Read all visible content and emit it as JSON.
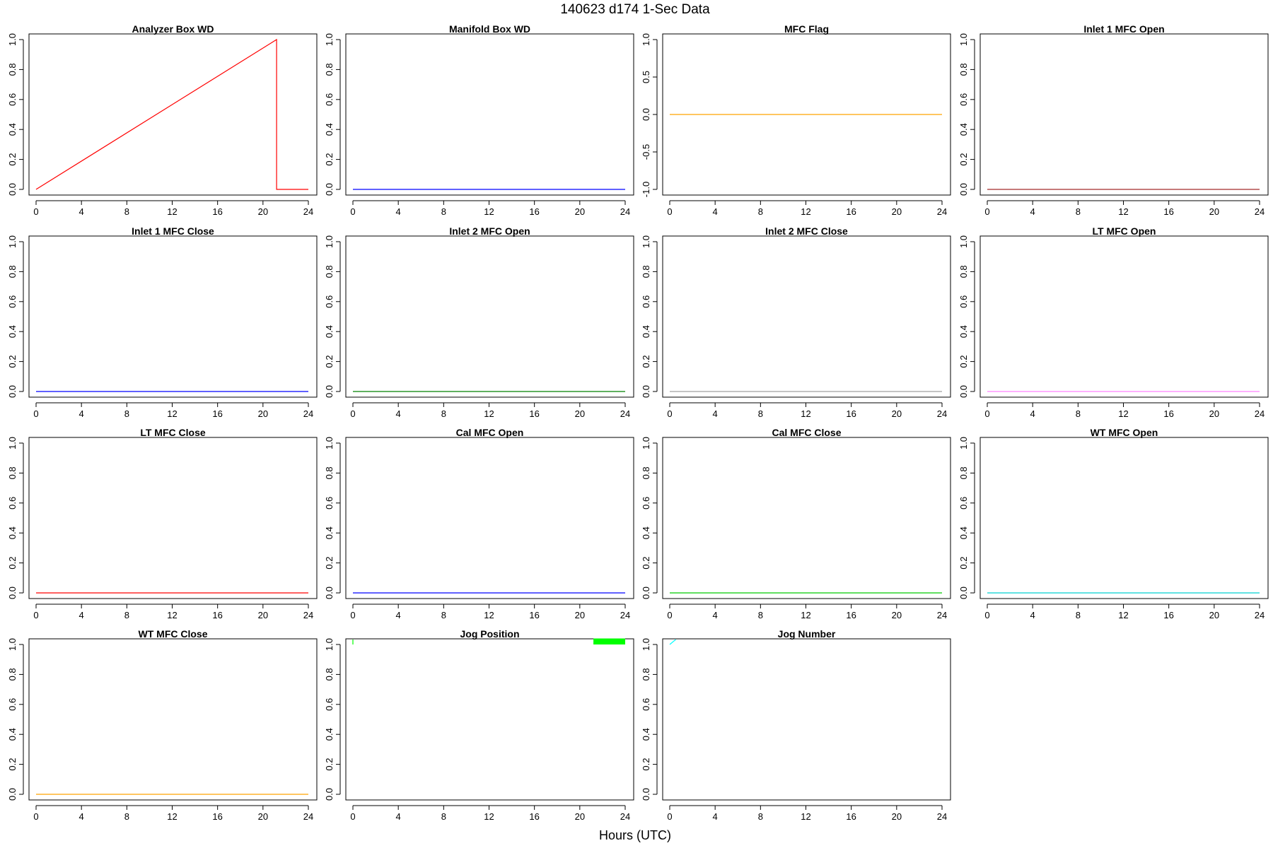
{
  "figure": {
    "title": "140623   d174   1-Sec Data",
    "xlabel": "Hours (UTC)"
  },
  "chart_data": [
    {
      "type": "line",
      "title": "Analyzer Box WD",
      "color": "#ff0000",
      "xlim": [
        0,
        24
      ],
      "ylim": [
        0,
        1
      ],
      "yticks": [
        "0.0",
        "0.2",
        "0.4",
        "0.6",
        "0.8",
        "1.0"
      ],
      "xticks": [
        "0",
        "4",
        "8",
        "12",
        "16",
        "20",
        "24"
      ],
      "series": [
        {
          "x": [
            0,
            21.2,
            21.2,
            24
          ],
          "y": [
            0,
            1,
            0,
            0
          ]
        }
      ]
    },
    {
      "type": "line",
      "title": "Manifold Box WD",
      "color": "#0000ff",
      "xlim": [
        0,
        24
      ],
      "ylim": [
        0,
        1
      ],
      "yticks": [
        "0.0",
        "0.2",
        "0.4",
        "0.6",
        "0.8",
        "1.0"
      ],
      "xticks": [
        "0",
        "4",
        "8",
        "12",
        "16",
        "20",
        "24"
      ],
      "series": [
        {
          "x": [
            0,
            24
          ],
          "y": [
            0,
            0
          ]
        }
      ]
    },
    {
      "type": "line",
      "title": "MFC Flag",
      "color": "#ffa500",
      "xlim": [
        0,
        24
      ],
      "ylim": [
        -1,
        1
      ],
      "yticks": [
        "-1.0",
        "-0.5",
        "0.0",
        "0.5",
        "1.0"
      ],
      "xticks": [
        "0",
        "4",
        "8",
        "12",
        "16",
        "20",
        "24"
      ],
      "series": [
        {
          "x": [
            0,
            24
          ],
          "y": [
            0,
            0
          ]
        }
      ]
    },
    {
      "type": "line",
      "title": "Inlet 1 MFC Open",
      "color": "#a52a2a",
      "xlim": [
        0,
        24
      ],
      "ylim": [
        0,
        1
      ],
      "yticks": [
        "0.0",
        "0.2",
        "0.4",
        "0.6",
        "0.8",
        "1.0"
      ],
      "xticks": [
        "0",
        "4",
        "8",
        "12",
        "16",
        "20",
        "24"
      ],
      "series": [
        {
          "x": [
            0,
            24
          ],
          "y": [
            0,
            0
          ]
        }
      ]
    },
    {
      "type": "line",
      "title": "Inlet 1 MFC Close",
      "color": "#0000ff",
      "xlim": [
        0,
        24
      ],
      "ylim": [
        0,
        1
      ],
      "yticks": [
        "0.0",
        "0.2",
        "0.4",
        "0.6",
        "0.8",
        "1.0"
      ],
      "xticks": [
        "0",
        "4",
        "8",
        "12",
        "16",
        "20",
        "24"
      ],
      "series": [
        {
          "x": [
            0,
            24
          ],
          "y": [
            0,
            0
          ]
        }
      ]
    },
    {
      "type": "line",
      "title": "Inlet 2 MFC Open",
      "color": "#008000",
      "xlim": [
        0,
        24
      ],
      "ylim": [
        0,
        1
      ],
      "yticks": [
        "0.0",
        "0.2",
        "0.4",
        "0.6",
        "0.8",
        "1.0"
      ],
      "xticks": [
        "0",
        "4",
        "8",
        "12",
        "16",
        "20",
        "24"
      ],
      "series": [
        {
          "x": [
            0,
            24
          ],
          "y": [
            0,
            0
          ]
        }
      ]
    },
    {
      "type": "line",
      "title": "Inlet 2 MFC Close",
      "color": "#a0a0a0",
      "xlim": [
        0,
        24
      ],
      "ylim": [
        0,
        1
      ],
      "yticks": [
        "0.0",
        "0.2",
        "0.4",
        "0.6",
        "0.8",
        "1.0"
      ],
      "xticks": [
        "0",
        "4",
        "8",
        "12",
        "16",
        "20",
        "24"
      ],
      "series": [
        {
          "x": [
            0,
            24
          ],
          "y": [
            0,
            0
          ]
        }
      ]
    },
    {
      "type": "line",
      "title": "LT MFC Open",
      "color": "#ff80ff",
      "xlim": [
        0,
        24
      ],
      "ylim": [
        0,
        1
      ],
      "yticks": [
        "0.0",
        "0.2",
        "0.4",
        "0.6",
        "0.8",
        "1.0"
      ],
      "xticks": [
        "0",
        "4",
        "8",
        "12",
        "16",
        "20",
        "24"
      ],
      "series": [
        {
          "x": [
            0,
            24
          ],
          "y": [
            0,
            0
          ]
        }
      ]
    },
    {
      "type": "line",
      "title": "LT MFC Close",
      "color": "#ff0000",
      "xlim": [
        0,
        24
      ],
      "ylim": [
        0,
        1
      ],
      "yticks": [
        "0.0",
        "0.2",
        "0.4",
        "0.6",
        "0.8",
        "1.0"
      ],
      "xticks": [
        "0",
        "4",
        "8",
        "12",
        "16",
        "20",
        "24"
      ],
      "series": [
        {
          "x": [
            0,
            24
          ],
          "y": [
            0,
            0
          ]
        }
      ]
    },
    {
      "type": "line",
      "title": "Cal MFC Open",
      "color": "#0000ff",
      "xlim": [
        0,
        24
      ],
      "ylim": [
        0,
        1
      ],
      "yticks": [
        "0.0",
        "0.2",
        "0.4",
        "0.6",
        "0.8",
        "1.0"
      ],
      "xticks": [
        "0",
        "4",
        "8",
        "12",
        "16",
        "20",
        "24"
      ],
      "series": [
        {
          "x": [
            0,
            24
          ],
          "y": [
            0,
            0
          ]
        }
      ]
    },
    {
      "type": "line",
      "title": "Cal MFC Close",
      "color": "#00cc00",
      "xlim": [
        0,
        24
      ],
      "ylim": [
        0,
        1
      ],
      "yticks": [
        "0.0",
        "0.2",
        "0.4",
        "0.6",
        "0.8",
        "1.0"
      ],
      "xticks": [
        "0",
        "4",
        "8",
        "12",
        "16",
        "20",
        "24"
      ],
      "series": [
        {
          "x": [
            0,
            24
          ],
          "y": [
            0,
            0
          ]
        }
      ]
    },
    {
      "type": "line",
      "title": "WT MFC Open",
      "color": "#00d0d0",
      "xlim": [
        0,
        24
      ],
      "ylim": [
        0,
        1
      ],
      "yticks": [
        "0.0",
        "0.2",
        "0.4",
        "0.6",
        "0.8",
        "1.0"
      ],
      "xticks": [
        "0",
        "4",
        "8",
        "12",
        "16",
        "20",
        "24"
      ],
      "series": [
        {
          "x": [
            0,
            24
          ],
          "y": [
            0,
            0
          ]
        }
      ]
    },
    {
      "type": "line",
      "title": "WT MFC Close",
      "color": "#ffa500",
      "xlim": [
        0,
        24
      ],
      "ylim": [
        0,
        1
      ],
      "yticks": [
        "0.0",
        "0.2",
        "0.4",
        "0.6",
        "0.8",
        "1.0"
      ],
      "xticks": [
        "0",
        "4",
        "8",
        "12",
        "16",
        "20",
        "24"
      ],
      "series": [
        {
          "x": [
            0,
            24
          ],
          "y": [
            0,
            0
          ]
        }
      ]
    },
    {
      "type": "line",
      "title": "Jog Position",
      "color": "#00ff00",
      "xlim": [
        0,
        24
      ],
      "ylim": [
        0,
        1
      ],
      "yticks": [
        "0.0",
        "0.2",
        "0.4",
        "0.6",
        "0.8",
        "1.0"
      ],
      "xticks": [
        "0",
        "4",
        "8",
        "12",
        "16",
        "20",
        "24"
      ],
      "series": [
        {
          "x": [
            0,
            0
          ],
          "y": [
            1.0,
            1.05
          ]
        }
      ],
      "filled_blocks": [
        {
          "x0": 21.2,
          "x1": 24,
          "y0": 1.0,
          "y1": 1.04
        }
      ]
    },
    {
      "type": "line",
      "title": "Jog Number",
      "color": "#00ffff",
      "xlim": [
        0,
        24
      ],
      "ylim": [
        0,
        1
      ],
      "yticks": [
        "0.0",
        "0.2",
        "0.4",
        "0.6",
        "0.8",
        "1.0"
      ],
      "xticks": [
        "0",
        "4",
        "8",
        "12",
        "16",
        "20",
        "24"
      ],
      "series": [
        {
          "x": [
            0,
            0.8
          ],
          "y": [
            1.0,
            1.05
          ]
        }
      ]
    }
  ]
}
